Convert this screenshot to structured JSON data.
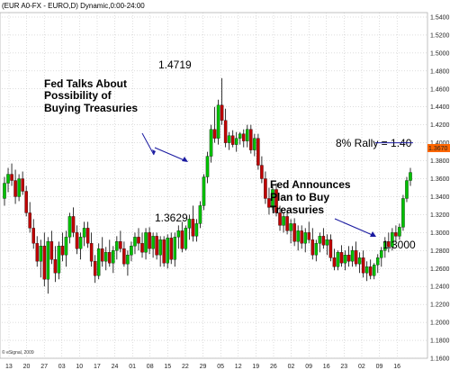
{
  "title": "(EUR A0-FX - EURO,D) Dynamic,0:00-24:00",
  "copyright": "© eSignal, 2009",
  "price_badge": "1.3670",
  "colors": {
    "up": "#00c000",
    "down": "#c00000",
    "grid": "#bbbbbb",
    "arrow": "#1a1aa0",
    "badge": "#ff6600"
  },
  "chart_data": {
    "type": "candlestick",
    "x_labels": [
      "13",
      "20",
      "27",
      "03",
      "10",
      "17",
      "24",
      "01",
      "08",
      "15",
      "22",
      "29",
      "05",
      "12",
      "19",
      "26",
      "02",
      "09",
      "16",
      "23",
      "02",
      "09",
      "16"
    ],
    "y_ticks": [
      "1.5400",
      "1.5200",
      "1.5000",
      "1.4800",
      "1.4600",
      "1.4400",
      "1.4200",
      "1.4000",
      "1.3800",
      "1.3600",
      "1.3400",
      "1.3200",
      "1.3000",
      "1.2800",
      "1.2600",
      "1.2400",
      "1.2200",
      "1.2000",
      "1.1800",
      "1.1600"
    ],
    "ylim": [
      1.16,
      1.545
    ],
    "grid": true,
    "candles": [
      [
        1.338,
        1.362,
        1.33,
        1.355
      ],
      [
        1.355,
        1.372,
        1.345,
        1.365
      ],
      [
        1.365,
        1.377,
        1.352,
        1.358
      ],
      [
        1.358,
        1.37,
        1.332,
        1.34
      ],
      [
        1.34,
        1.365,
        1.335,
        1.36
      ],
      [
        1.36,
        1.368,
        1.342,
        1.346
      ],
      [
        1.346,
        1.352,
        1.318,
        1.322
      ],
      [
        1.322,
        1.334,
        1.3,
        1.305
      ],
      [
        1.305,
        1.315,
        1.282,
        1.288
      ],
      [
        1.288,
        1.296,
        1.262,
        1.268
      ],
      [
        1.268,
        1.292,
        1.25,
        1.285
      ],
      [
        1.285,
        1.3,
        1.24,
        1.248
      ],
      [
        1.248,
        1.295,
        1.232,
        1.29
      ],
      [
        1.29,
        1.302,
        1.265,
        1.27
      ],
      [
        1.27,
        1.285,
        1.245,
        1.255
      ],
      [
        1.255,
        1.29,
        1.248,
        1.285
      ],
      [
        1.285,
        1.3,
        1.268,
        1.275
      ],
      [
        1.275,
        1.302,
        1.262,
        1.295
      ],
      [
        1.295,
        1.322,
        1.288,
        1.318
      ],
      [
        1.318,
        1.328,
        1.295,
        1.3
      ],
      [
        1.3,
        1.308,
        1.276,
        1.282
      ],
      [
        1.282,
        1.3,
        1.27,
        1.295
      ],
      [
        1.295,
        1.312,
        1.285,
        1.305
      ],
      [
        1.305,
        1.312,
        1.283,
        1.288
      ],
      [
        1.288,
        1.3,
        1.262,
        1.268
      ],
      [
        1.268,
        1.275,
        1.244,
        1.252
      ],
      [
        1.252,
        1.288,
        1.248,
        1.282
      ],
      [
        1.282,
        1.295,
        1.262,
        1.268
      ],
      [
        1.268,
        1.284,
        1.258,
        1.278
      ],
      [
        1.278,
        1.292,
        1.262,
        1.266
      ],
      [
        1.266,
        1.285,
        1.255,
        1.28
      ],
      [
        1.28,
        1.296,
        1.27,
        1.29
      ],
      [
        1.29,
        1.302,
        1.278,
        1.282
      ],
      [
        1.282,
        1.29,
        1.262,
        1.265
      ],
      [
        1.265,
        1.28,
        1.252,
        1.275
      ],
      [
        1.275,
        1.29,
        1.268,
        1.285
      ],
      [
        1.285,
        1.3,
        1.276,
        1.295
      ],
      [
        1.295,
        1.305,
        1.28,
        1.288
      ],
      [
        1.288,
        1.3,
        1.272,
        1.278
      ],
      [
        1.278,
        1.305,
        1.27,
        1.3
      ],
      [
        1.3,
        1.306,
        1.276,
        1.282
      ],
      [
        1.282,
        1.3,
        1.272,
        1.296
      ],
      [
        1.296,
        1.3,
        1.27,
        1.275
      ],
      [
        1.275,
        1.296,
        1.262,
        1.292
      ],
      [
        1.292,
        1.296,
        1.262,
        1.266
      ],
      [
        1.266,
        1.298,
        1.26,
        1.294
      ],
      [
        1.294,
        1.3,
        1.265,
        1.27
      ],
      [
        1.27,
        1.3,
        1.262,
        1.295
      ],
      [
        1.295,
        1.308,
        1.282,
        1.302
      ],
      [
        1.302,
        1.312,
        1.278,
        1.282
      ],
      [
        1.282,
        1.308,
        1.28,
        1.305
      ],
      [
        1.305,
        1.32,
        1.292,
        1.315
      ],
      [
        1.315,
        1.33,
        1.29,
        1.296
      ],
      [
        1.296,
        1.315,
        1.29,
        1.31
      ],
      [
        1.31,
        1.335,
        1.305,
        1.33
      ],
      [
        1.33,
        1.365,
        1.325,
        1.362
      ],
      [
        1.362,
        1.39,
        1.355,
        1.385
      ],
      [
        1.385,
        1.42,
        1.378,
        1.415
      ],
      [
        1.415,
        1.44,
        1.4,
        1.405
      ],
      [
        1.405,
        1.448,
        1.398,
        1.442
      ],
      [
        1.442,
        1.472,
        1.42,
        1.425
      ],
      [
        1.425,
        1.438,
        1.395,
        1.4
      ],
      [
        1.4,
        1.412,
        1.392,
        1.408
      ],
      [
        1.408,
        1.414,
        1.395,
        1.398
      ],
      [
        1.398,
        1.412,
        1.39,
        1.405
      ],
      [
        1.405,
        1.412,
        1.398,
        1.41
      ],
      [
        1.41,
        1.415,
        1.395,
        1.402
      ],
      [
        1.402,
        1.42,
        1.395,
        1.415
      ],
      [
        1.415,
        1.42,
        1.388,
        1.392
      ],
      [
        1.392,
        1.41,
        1.385,
        1.405
      ],
      [
        1.405,
        1.41,
        1.37,
        1.375
      ],
      [
        1.375,
        1.385,
        1.355,
        1.36
      ],
      [
        1.36,
        1.368,
        1.332,
        1.338
      ],
      [
        1.338,
        1.35,
        1.32,
        1.328
      ],
      [
        1.328,
        1.352,
        1.325,
        1.348
      ],
      [
        1.348,
        1.355,
        1.318,
        1.322
      ],
      [
        1.322,
        1.33,
        1.302,
        1.308
      ],
      [
        1.308,
        1.322,
        1.3,
        1.318
      ],
      [
        1.318,
        1.325,
        1.298,
        1.302
      ],
      [
        1.302,
        1.315,
        1.288,
        1.31
      ],
      [
        1.31,
        1.316,
        1.285,
        1.29
      ],
      [
        1.29,
        1.308,
        1.28,
        1.302
      ],
      [
        1.302,
        1.308,
        1.282,
        1.288
      ],
      [
        1.288,
        1.305,
        1.278,
        1.3
      ],
      [
        1.3,
        1.312,
        1.288,
        1.292
      ],
      [
        1.292,
        1.305,
        1.27,
        1.275
      ],
      [
        1.275,
        1.292,
        1.268,
        1.288
      ],
      [
        1.288,
        1.3,
        1.278,
        1.296
      ],
      [
        1.296,
        1.305,
        1.282,
        1.286
      ],
      [
        1.286,
        1.298,
        1.275,
        1.292
      ],
      [
        1.292,
        1.298,
        1.268,
        1.272
      ],
      [
        1.272,
        1.282,
        1.258,
        1.262
      ],
      [
        1.262,
        1.28,
        1.258,
        1.278
      ],
      [
        1.278,
        1.286,
        1.262,
        1.266
      ],
      [
        1.266,
        1.28,
        1.258,
        1.275
      ],
      [
        1.275,
        1.285,
        1.262,
        1.268
      ],
      [
        1.268,
        1.285,
        1.262,
        1.28
      ],
      [
        1.28,
        1.29,
        1.262,
        1.265
      ],
      [
        1.265,
        1.278,
        1.255,
        1.272
      ],
      [
        1.272,
        1.28,
        1.25,
        1.255
      ],
      [
        1.255,
        1.268,
        1.246,
        1.262
      ],
      [
        1.262,
        1.27,
        1.248,
        1.252
      ],
      [
        1.252,
        1.266,
        1.248,
        1.264
      ],
      [
        1.264,
        1.276,
        1.255,
        1.272
      ],
      [
        1.272,
        1.284,
        1.262,
        1.28
      ],
      [
        1.28,
        1.295,
        1.272,
        1.29
      ],
      [
        1.29,
        1.3,
        1.278,
        1.284
      ],
      [
        1.284,
        1.305,
        1.28,
        1.3
      ],
      [
        1.3,
        1.308,
        1.29,
        1.296
      ],
      [
        1.296,
        1.31,
        1.292,
        1.306
      ],
      [
        1.306,
        1.342,
        1.302,
        1.338
      ],
      [
        1.338,
        1.362,
        1.334,
        1.358
      ],
      [
        1.358,
        1.372,
        1.352,
        1.367
      ]
    ],
    "price_labels": [
      {
        "text": "1.4719",
        "price": 1.4719
      },
      {
        "text": "1.3629",
        "price": 1.3629
      },
      {
        "text": "1.3000",
        "price": 1.3
      }
    ],
    "annotations": [
      {
        "lines": [
          "Fed Talks About",
          "Possibility of",
          "Buying Treasuries"
        ]
      },
      {
        "lines": [
          "Fed Announces",
          "Plan to Buy",
          "Treasuries"
        ]
      },
      {
        "text": "8% Rally = 1.40",
        "price": 1.4
      }
    ]
  }
}
